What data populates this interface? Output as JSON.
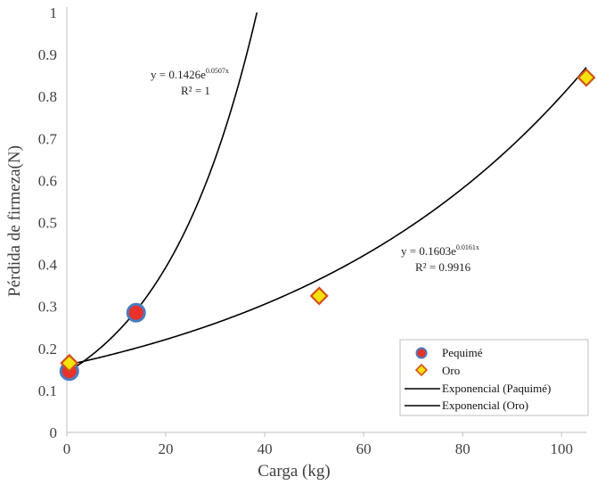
{
  "chart_data": {
    "type": "scatter",
    "xlabel": "Carga (kg)",
    "ylabel": "Pérdida de firmeza(N)",
    "xlim": [
      0,
      105
    ],
    "ylim": [
      0,
      1
    ],
    "x_ticks": [
      "0",
      "20",
      "40",
      "60",
      "80",
      "100"
    ],
    "y_ticks": [
      "0",
      "0.1",
      "0.2",
      "0.3",
      "0.4",
      "0.5",
      "0.6",
      "0.7",
      "0.8",
      "0.9",
      "1"
    ],
    "grid": false,
    "legend_position": "bottom-right",
    "series": [
      {
        "name": "Pequimé",
        "marker": "circle",
        "color": "#e8312a",
        "edge": "#4a7bbf",
        "x": [
          0.5,
          14
        ],
        "y": [
          0.146,
          0.285
        ]
      },
      {
        "name": "Oro",
        "marker": "diamond",
        "color": "#f5e20c",
        "edge": "#d0521c",
        "x": [
          0.5,
          51,
          105
        ],
        "y": [
          0.165,
          0.325,
          0.845
        ]
      }
    ],
    "trendlines": [
      {
        "name": "Exponencial (Paquimé)",
        "a": 0.1426,
        "b": 0.0507,
        "x_start": 0,
        "color": "#000000",
        "equation_base": "y = 0.1426e",
        "equation_exp": "0.0507x",
        "r2": "R² = 1"
      },
      {
        "name": "Exponencial (Oro)",
        "a": 0.1603,
        "b": 0.0161,
        "x_start": 0,
        "color": "#000000",
        "equation_base": "y = 0.1603e",
        "equation_exp": "0.0161x",
        "r2": "R² = 0.9916"
      }
    ]
  }
}
